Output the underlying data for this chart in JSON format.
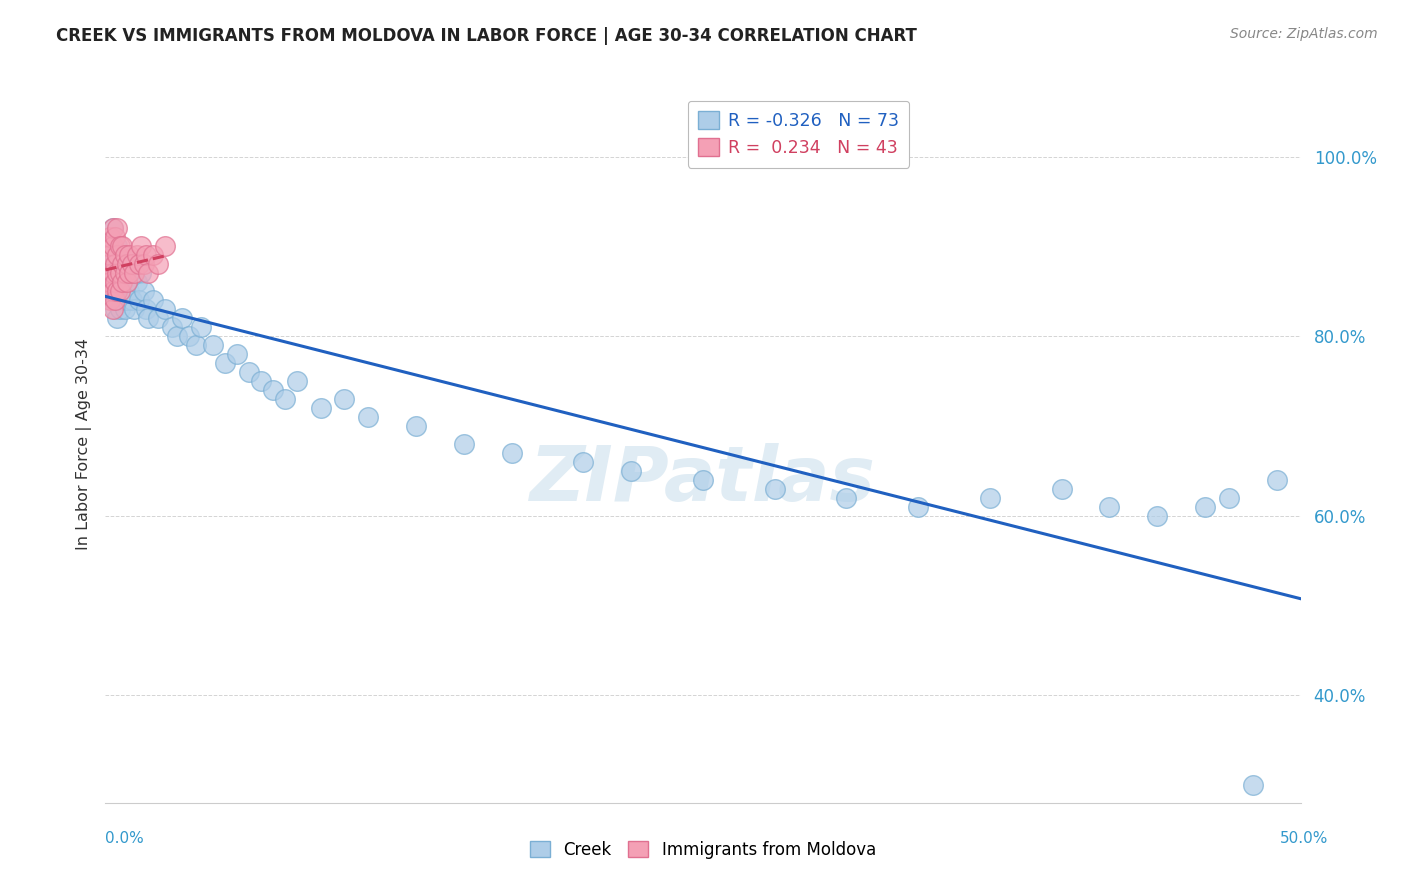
{
  "title": "CREEK VS IMMIGRANTS FROM MOLDOVA IN LABOR FORCE | AGE 30-34 CORRELATION CHART",
  "source": "Source: ZipAtlas.com",
  "ylabel": "In Labor Force | Age 30-34",
  "y_ticks": [
    0.4,
    0.6,
    0.8,
    1.0
  ],
  "y_tick_labels": [
    "40.0%",
    "60.0%",
    "80.0%",
    "100.0%"
  ],
  "x_range": [
    0.0,
    0.5
  ],
  "y_range": [
    0.28,
    1.08
  ],
  "creek_color": "#aecde8",
  "creek_edge_color": "#7bafd4",
  "moldova_color": "#f4a0b5",
  "moldova_edge_color": "#e07090",
  "creek_line_color": "#2060c0",
  "moldova_line_color": "#d04060",
  "creek_R": -0.326,
  "creek_N": 73,
  "moldova_R": 0.234,
  "moldova_N": 43,
  "watermark": "ZIPatlas",
  "creek_x": [
    0.001,
    0.001,
    0.002,
    0.002,
    0.002,
    0.003,
    0.003,
    0.003,
    0.003,
    0.004,
    0.004,
    0.004,
    0.005,
    0.005,
    0.005,
    0.005,
    0.006,
    0.006,
    0.006,
    0.007,
    0.007,
    0.007,
    0.008,
    0.008,
    0.009,
    0.009,
    0.01,
    0.01,
    0.011,
    0.012,
    0.013,
    0.014,
    0.015,
    0.016,
    0.017,
    0.018,
    0.02,
    0.022,
    0.025,
    0.028,
    0.03,
    0.032,
    0.035,
    0.038,
    0.04,
    0.045,
    0.05,
    0.055,
    0.06,
    0.065,
    0.07,
    0.075,
    0.08,
    0.09,
    0.1,
    0.11,
    0.13,
    0.15,
    0.17,
    0.2,
    0.22,
    0.25,
    0.28,
    0.31,
    0.34,
    0.37,
    0.4,
    0.42,
    0.44,
    0.46,
    0.47,
    0.48,
    0.49
  ],
  "creek_y": [
    0.87,
    0.89,
    0.85,
    0.88,
    0.91,
    0.84,
    0.86,
    0.89,
    0.92,
    0.83,
    0.86,
    0.88,
    0.82,
    0.85,
    0.87,
    0.9,
    0.83,
    0.86,
    0.88,
    0.84,
    0.87,
    0.89,
    0.85,
    0.83,
    0.86,
    0.84,
    0.87,
    0.85,
    0.84,
    0.83,
    0.86,
    0.84,
    0.87,
    0.85,
    0.83,
    0.82,
    0.84,
    0.82,
    0.83,
    0.81,
    0.8,
    0.82,
    0.8,
    0.79,
    0.81,
    0.79,
    0.77,
    0.78,
    0.76,
    0.75,
    0.74,
    0.73,
    0.75,
    0.72,
    0.73,
    0.71,
    0.7,
    0.68,
    0.67,
    0.66,
    0.65,
    0.64,
    0.63,
    0.62,
    0.61,
    0.62,
    0.63,
    0.61,
    0.6,
    0.61,
    0.62,
    0.3,
    0.64
  ],
  "moldova_x": [
    0.001,
    0.001,
    0.001,
    0.002,
    0.002,
    0.002,
    0.002,
    0.003,
    0.003,
    0.003,
    0.003,
    0.003,
    0.004,
    0.004,
    0.004,
    0.004,
    0.005,
    0.005,
    0.005,
    0.005,
    0.006,
    0.006,
    0.006,
    0.007,
    0.007,
    0.007,
    0.008,
    0.008,
    0.009,
    0.009,
    0.01,
    0.01,
    0.011,
    0.012,
    0.013,
    0.014,
    0.015,
    0.016,
    0.017,
    0.018,
    0.02,
    0.022,
    0.025
  ],
  "moldova_y": [
    0.86,
    0.88,
    0.9,
    0.84,
    0.86,
    0.89,
    0.91,
    0.83,
    0.85,
    0.87,
    0.9,
    0.92,
    0.84,
    0.86,
    0.88,
    0.91,
    0.85,
    0.87,
    0.89,
    0.92,
    0.85,
    0.87,
    0.9,
    0.86,
    0.88,
    0.9,
    0.87,
    0.89,
    0.86,
    0.88,
    0.87,
    0.89,
    0.88,
    0.87,
    0.89,
    0.88,
    0.9,
    0.88,
    0.89,
    0.87,
    0.89,
    0.88,
    0.9
  ]
}
